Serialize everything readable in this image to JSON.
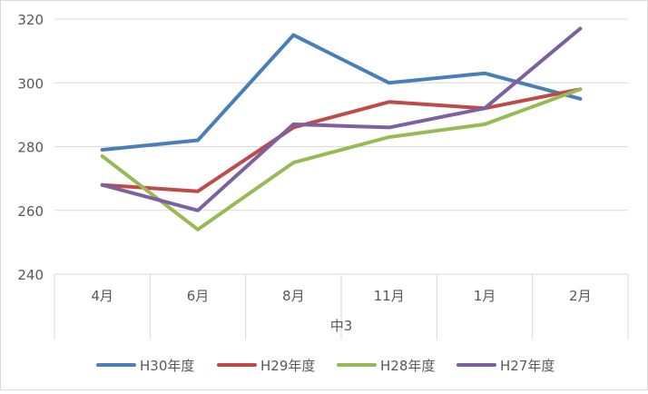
{
  "chart_data": {
    "type": "line",
    "xlabel": "中3",
    "categories": [
      "4月",
      "6月",
      "8月",
      "11月",
      "1月",
      "2月"
    ],
    "ylim": [
      240,
      320
    ],
    "yticks": [
      240,
      260,
      280,
      300,
      320
    ],
    "grid": true,
    "legend_position": "bottom",
    "series": [
      {
        "name": "H30年度",
        "color": "#4a7ebb",
        "values": [
          279,
          282,
          315,
          300,
          303,
          295
        ]
      },
      {
        "name": "H29年度",
        "color": "#be4b48",
        "values": [
          268,
          266,
          286,
          294,
          292,
          298
        ]
      },
      {
        "name": "H28年度",
        "color": "#98b954",
        "values": [
          277,
          254,
          275,
          283,
          287,
          298
        ]
      },
      {
        "name": "H27年度",
        "color": "#7d60a0",
        "values": [
          268,
          260,
          287,
          286,
          292,
          317
        ]
      }
    ]
  }
}
